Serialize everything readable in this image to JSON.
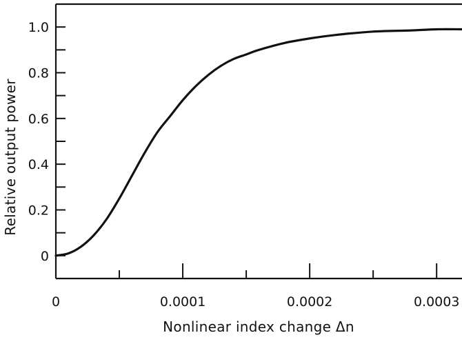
{
  "chart_data": {
    "type": "line",
    "title": "",
    "xlabel": "Nonlinear index change Δn",
    "ylabel": "Relative output power",
    "xlim": [
      0,
      0.00032
    ],
    "ylim": [
      -0.1,
      1.1
    ],
    "x_ticks": [
      {
        "value": 0,
        "label": "0"
      },
      {
        "value": 0.0001,
        "label": "0.0001"
      },
      {
        "value": 0.0002,
        "label": "0.0002"
      },
      {
        "value": 0.0003,
        "label": "0.0003"
      }
    ],
    "x_minor_ticks": [
      5e-05,
      0.00015,
      0.00025
    ],
    "y_ticks": [
      {
        "value": 0,
        "label": "0"
      },
      {
        "value": 0.2,
        "label": "0.2"
      },
      {
        "value": 0.4,
        "label": "0.4"
      },
      {
        "value": 0.6,
        "label": "0.6"
      },
      {
        "value": 0.8,
        "label": "0.8"
      },
      {
        "value": 1.0,
        "label": "1.0"
      }
    ],
    "y_minor_ticks": [
      0.1,
      0.3,
      0.5,
      0.7,
      0.9
    ],
    "grid": false,
    "series": [
      {
        "x": [
          0,
          1e-05,
          2e-05,
          3e-05,
          4e-05,
          5e-05,
          6e-05,
          7e-05,
          8e-05,
          9e-05,
          0.0001,
          0.00011,
          0.00012,
          0.00013,
          0.00014,
          0.00015,
          0.00016,
          0.00018,
          0.0002,
          0.00022,
          0.00025,
          0.00028,
          0.0003,
          0.00032
        ],
        "y": [
          0,
          0.01,
          0.04,
          0.09,
          0.16,
          0.25,
          0.35,
          0.45,
          0.54,
          0.61,
          0.68,
          0.74,
          0.79,
          0.83,
          0.86,
          0.88,
          0.9,
          0.93,
          0.95,
          0.965,
          0.98,
          0.985,
          0.99,
          0.99
        ]
      }
    ],
    "colors": {
      "line": "#111111",
      "axes": "#111111",
      "background": "#ffffff"
    }
  }
}
